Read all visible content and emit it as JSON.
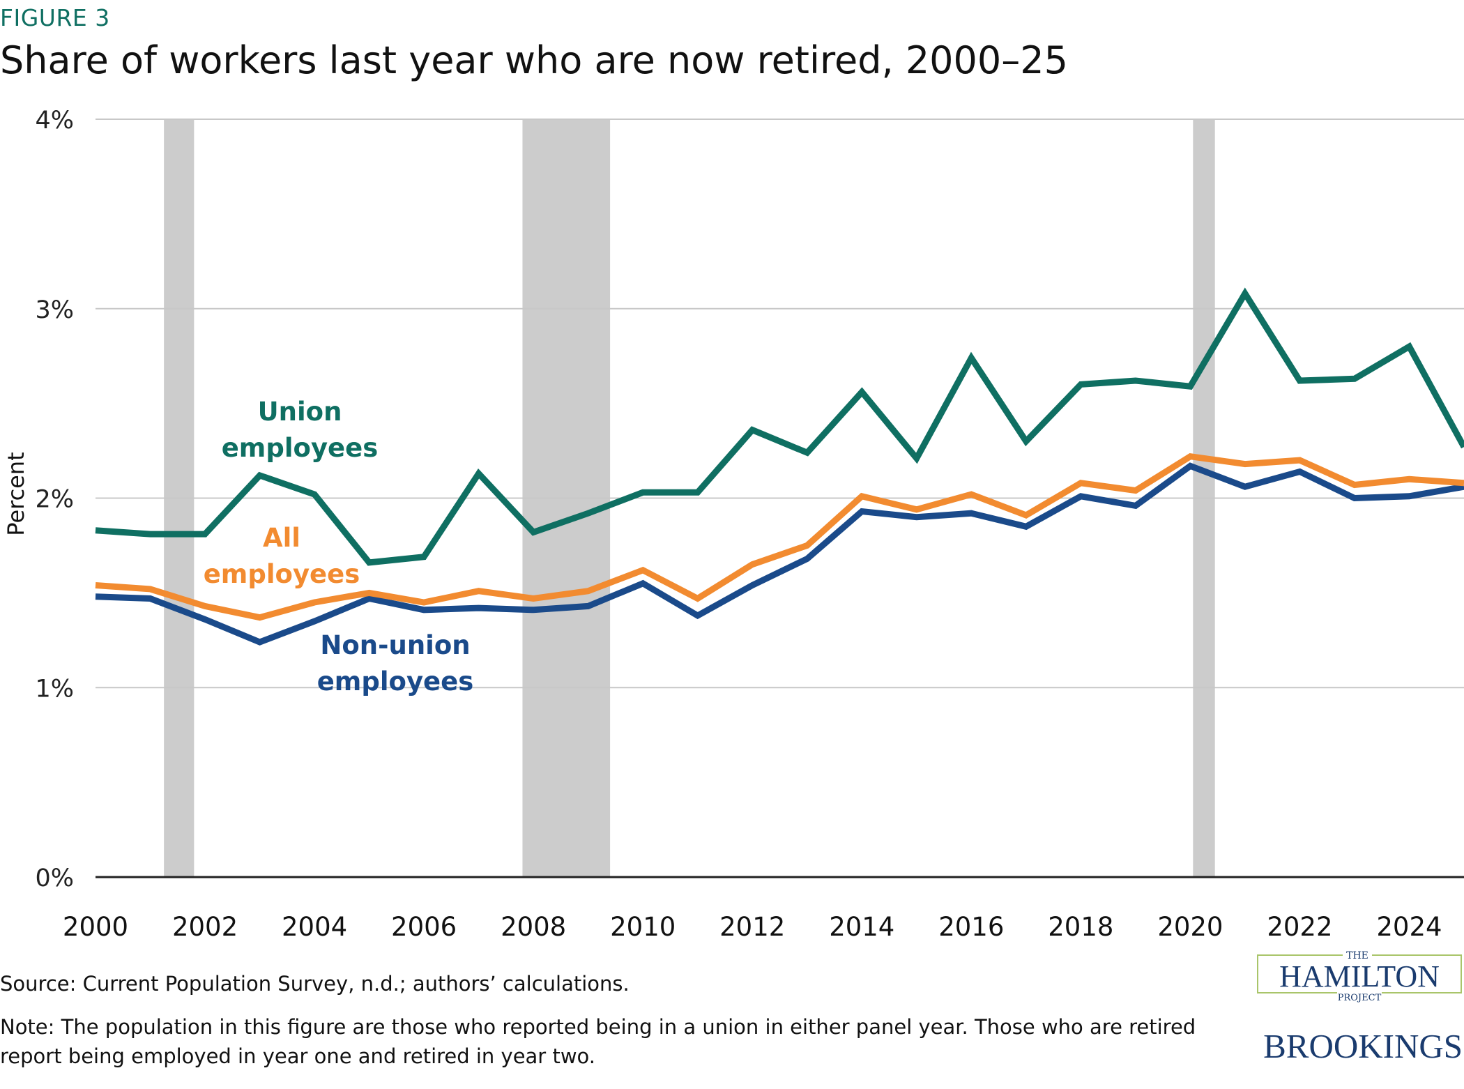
{
  "figure_label": "FIGURE 3",
  "title": "Share of workers last year who are now retired, 2000–25",
  "source": "Source: Current Population Survey, n.d.; authors’ calculations.",
  "note": "Note: The population in this figure are those who reported being in a union in either panel year. Those who are retired report being employed in year one and retired in year two.",
  "logos": {
    "hamilton": {
      "top": "THE",
      "main": "HAMILTON",
      "bottom": "PROJECT"
    },
    "brookings": "BROOKINGS"
  },
  "chart_data": {
    "type": "line",
    "title": "Share of workers last year who are now retired, 2000–25",
    "xlabel": "",
    "ylabel": "Percent",
    "xlim": [
      2000,
      2025
    ],
    "ylim": [
      0,
      4
    ],
    "x_ticks": [
      "2000",
      "2002",
      "2004",
      "2006",
      "2008",
      "2010",
      "2012",
      "2014",
      "2016",
      "2018",
      "2020",
      "2022",
      "2024"
    ],
    "y_ticks": [
      "0%",
      "1%",
      "2%",
      "3%",
      "4%"
    ],
    "grid": "horizontal",
    "recession_shading": [
      [
        2001.25,
        2001.8
      ],
      [
        2007.8,
        2009.4
      ],
      [
        2020.05,
        2020.45
      ]
    ],
    "x": [
      2000,
      2001,
      2002,
      2003,
      2004,
      2005,
      2006,
      2007,
      2008,
      2009,
      2010,
      2011,
      2012,
      2013,
      2014,
      2015,
      2016,
      2017,
      2018,
      2019,
      2020,
      2021,
      2022,
      2023,
      2024,
      2025
    ],
    "series": [
      {
        "name": "Union employees",
        "color": "#0f6f62",
        "values": [
          1.83,
          1.81,
          1.81,
          2.12,
          2.02,
          1.66,
          1.69,
          2.13,
          1.82,
          1.92,
          2.03,
          2.03,
          2.36,
          2.24,
          2.56,
          2.21,
          2.74,
          2.3,
          2.6,
          2.62,
          2.59,
          3.08,
          2.62,
          2.63,
          2.8,
          2.27
        ]
      },
      {
        "name": "All employees",
        "color": "#f28b30",
        "values": [
          1.54,
          1.52,
          1.43,
          1.37,
          1.45,
          1.5,
          1.45,
          1.51,
          1.47,
          1.51,
          1.62,
          1.47,
          1.65,
          1.75,
          2.01,
          1.94,
          2.02,
          1.91,
          2.08,
          2.04,
          2.22,
          2.18,
          2.2,
          2.07,
          2.1,
          2.08
        ]
      },
      {
        "name": "Non-union employees",
        "color": "#1a4a8a",
        "values": [
          1.48,
          1.47,
          1.36,
          1.24,
          1.35,
          1.47,
          1.41,
          1.42,
          1.41,
          1.43,
          1.55,
          1.38,
          1.54,
          1.68,
          1.93,
          1.9,
          1.92,
          1.85,
          2.01,
          1.96,
          2.17,
          2.06,
          2.14,
          2.0,
          2.01,
          2.06
        ]
      }
    ],
    "series_labels": [
      {
        "lines": [
          "Union",
          "employees"
        ],
        "color": "#0f6f62"
      },
      {
        "lines": [
          "All",
          "employees"
        ],
        "color": "#f28b30"
      },
      {
        "lines": [
          "Non-union",
          "employees"
        ],
        "color": "#1a4a8a"
      }
    ]
  }
}
